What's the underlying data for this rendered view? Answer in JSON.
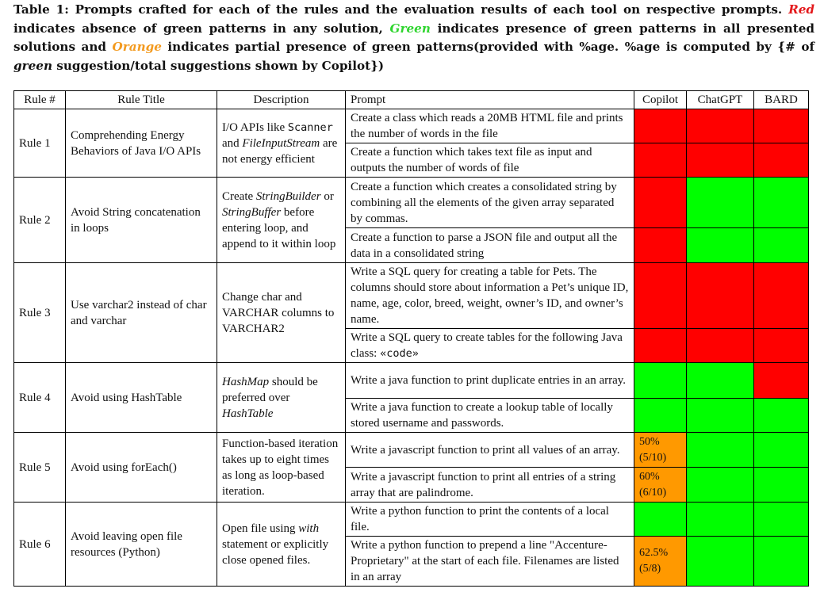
{
  "caption": {
    "prefix": "Table 1: Prompts crafted for each of the rules and the evaluation results of each tool on respective prompts.",
    "red_word": "Red",
    "after_red": "indicates absence of green patterns in any solution,",
    "green_word": "Green",
    "after_green": "indicates presence of green patterns in all presented solutions and",
    "orange_word": "Orange",
    "after_orange": "indicates partial presence of green patterns(provided with %age. %age is computed by {# of",
    "green_italic": "green",
    "suffix": "suggestion/total suggestions shown by Copilot})"
  },
  "colors": {
    "red": "#ff0000",
    "green": "#00ff00",
    "orange": "#ff9900"
  },
  "table": {
    "headers": {
      "rule_no": "Rule #",
      "rule_title": "Rule Title",
      "description": "Description",
      "prompt": "Prompt",
      "copilot": "Copilot",
      "chatgpt": "ChatGPT",
      "bard": "BARD"
    },
    "rules": [
      {
        "rule_no": "Rule 1",
        "title": "Comprehending Energy Behaviors of Java I/O APIs",
        "description": {
          "part1": "I/O APIs like ",
          "code": "Scanner",
          "part2": " and ",
          "em": "FileInputStream",
          "part3": " are not energy efficient"
        },
        "prompts": [
          {
            "text": "Create a class which reads a 20MB HTML file and prints the number of words in the file",
            "copilot": "red",
            "chatgpt": "red",
            "bard": "red"
          },
          {
            "text": "Create a function which takes text file as input and outputs the number of words of file",
            "copilot": "red",
            "chatgpt": "red",
            "bard": "red"
          }
        ]
      },
      {
        "rule_no": "Rule 2",
        "title": "Avoid String concatenation in loops",
        "description": {
          "part1": "Create ",
          "em1": "StringBuilder",
          "part2": " or ",
          "em2": "StringBuffer",
          "part3": " before entering loop, and append to it within loop"
        },
        "prompts": [
          {
            "text": "Create a function which creates a consolidated string by combining all the elements of the given array separated by commas.",
            "copilot": "red",
            "chatgpt": "green",
            "bard": "green"
          },
          {
            "text": "Create a function to parse a JSON file and output all the data in a consolidated string",
            "copilot": "red",
            "chatgpt": "green",
            "bard": "green"
          }
        ]
      },
      {
        "rule_no": "Rule 3",
        "title": "Use varchar2 instead of char and varchar",
        "description": {
          "text": "Change char and VARCHAR columns to VARCHAR2"
        },
        "prompts": [
          {
            "text": "Write a SQL query for creating a table for Pets. The columns should store about information a Pet’s unique ID, name, age, color, breed, weight, owner’s ID, and owner’s name.",
            "copilot": "red",
            "chatgpt": "red",
            "bard": "red"
          },
          {
            "text_part1": "Write a SQL query to create tables for the following Java class: ",
            "text_code": "«code»",
            "copilot": "red",
            "chatgpt": "red",
            "bard": "red"
          }
        ]
      },
      {
        "rule_no": "Rule 4",
        "title": "Avoid using HashTable",
        "description": {
          "em1": "HashMap",
          "part1": " should be preferred over ",
          "em2": "HashTable"
        },
        "prompts": [
          {
            "text": "Write a java function to print duplicate entries in an array.",
            "copilot": "green",
            "chatgpt": "green",
            "bard": "red"
          },
          {
            "text": "Write a java function to create a lookup table of locally stored username and passwords.",
            "copilot": "green",
            "chatgpt": "green",
            "bard": "green"
          }
        ]
      },
      {
        "rule_no": "Rule 5",
        "title": "Avoid using forEach()",
        "description": {
          "text": "Function-based iteration takes up to eight times as long as loop-based iteration."
        },
        "prompts": [
          {
            "text": "Write a javascript function to print all values of an array.",
            "copilot": "orange",
            "copilot_pct": "50%",
            "copilot_frac": "(5/10)",
            "chatgpt": "green",
            "bard": "green"
          },
          {
            "text": "Write a javascript function to print all entries of a string array that are palindrome.",
            "copilot": "orange",
            "copilot_pct": "60%",
            "copilot_frac": "(6/10)",
            "chatgpt": "green",
            "bard": "green"
          }
        ]
      },
      {
        "rule_no": "Rule 6",
        "title": "Avoid leaving open file resources (Python)",
        "description": {
          "part1": "Open file using ",
          "em": "with",
          "part2": " statement or explicitly close opened files."
        },
        "prompts": [
          {
            "text": "Write a python function to print the contents of a local file.",
            "copilot": "green",
            "chatgpt": "green",
            "bard": "green"
          },
          {
            "text": "Write a python function to prepend a line \"Accenture-Proprietary\" at the start of each file. Filenames are listed in an array",
            "copilot": "orange",
            "copilot_pct": "62.5%",
            "copilot_frac": "(5/8)",
            "chatgpt": "green",
            "bard": "green"
          }
        ]
      }
    ]
  }
}
